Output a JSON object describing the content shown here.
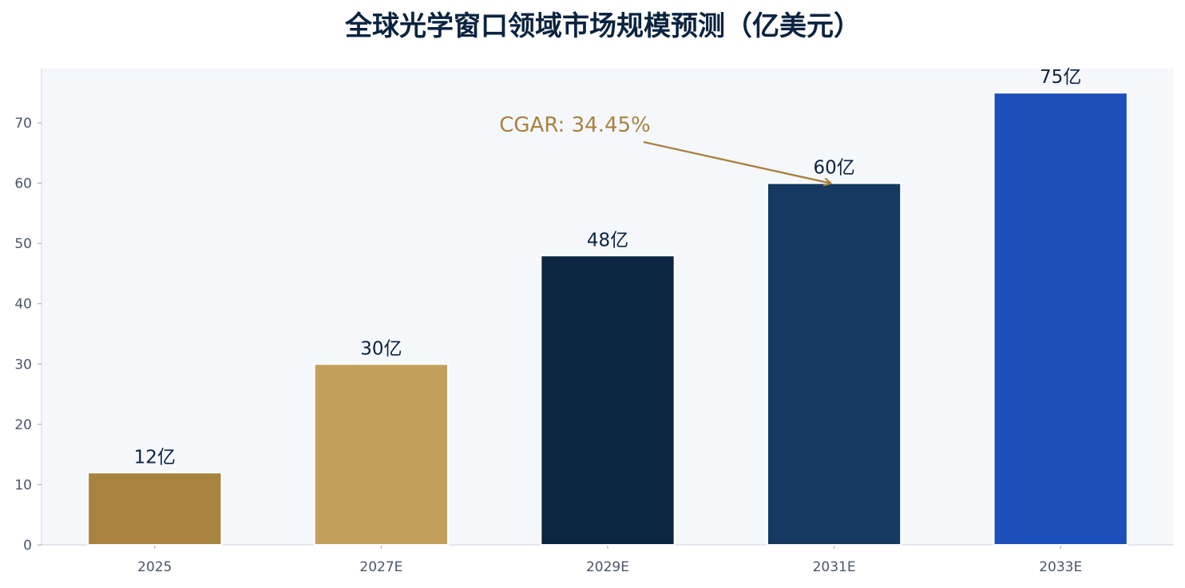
{
  "chart_data": {
    "type": "bar",
    "title": "全球光学窗口领域市场规模预测（亿美元）",
    "xlabel": "",
    "ylabel": "",
    "categories": [
      "2025",
      "2027E",
      "2029E",
      "2031E",
      "2033E"
    ],
    "values": [
      12,
      30,
      48,
      60,
      75
    ],
    "data_labels": [
      "12亿",
      "30亿",
      "48亿",
      "60亿",
      "75亿"
    ],
    "bar_colors": [
      "#a8823f",
      "#c39f5c",
      "#0c2540",
      "#153961",
      "#1c4fba"
    ],
    "ylim": [
      0,
      79
    ],
    "yticks": [
      0,
      10,
      20,
      30,
      40,
      50,
      60,
      70
    ],
    "grid": false,
    "legend": "none",
    "annotation": {
      "text": "CGAR: 34.45%",
      "color": "#a8823f",
      "arrow_target_category": "2031E",
      "arrow_target_value": 60
    },
    "plot_background": "#f5f7fb",
    "axis_color": "#d5dbe5"
  }
}
